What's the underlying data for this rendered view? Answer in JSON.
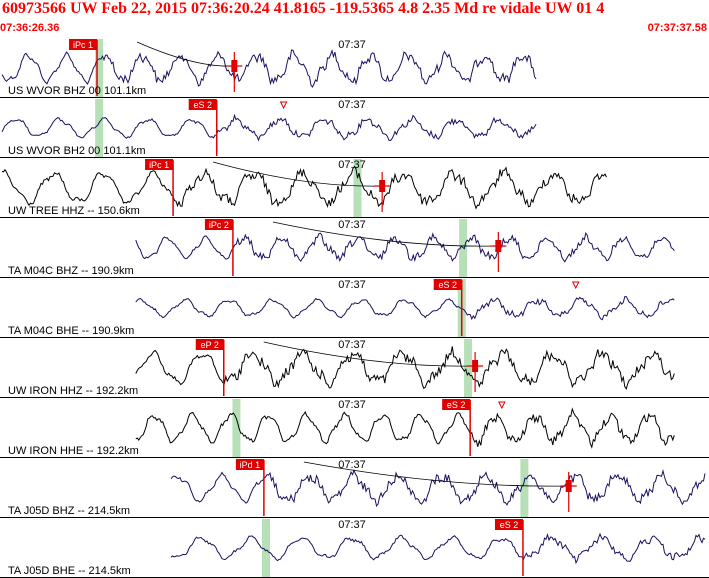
{
  "header": {
    "title": "60973566 UW Feb 22, 2015 07:36:20.24   41.8165 -119.5365  4.8 2.35 Md re vidale UW 01   4",
    "time_start": "07:36:26.36",
    "time_end": "07:37:37.58",
    "minute_label": "07:37"
  },
  "colors": {
    "title": "#ff0000",
    "trace_blue": "#1a1060",
    "trace_black": "#000000",
    "pick_flag": "#e00000",
    "window_band": "#b8e0b8",
    "travel_curve": "#000000"
  },
  "traces": [
    {
      "label": "US WVOR BHZ 00 101.1km",
      "color": "blue",
      "pick": "iPc 1",
      "pick_t": 0.135,
      "band_t": 0.138,
      "mark_t": 0.33,
      "mark_kind": "cross",
      "tri_t": 0.0,
      "start_t": 0.0,
      "end_t": 0.76,
      "amp": 0.9
    },
    {
      "label": "US WVOR BH2 00 101.1km",
      "color": "blue",
      "pick": "eS 2",
      "pick_t": 0.305,
      "band_t": 0.138,
      "mark_t": 0.305,
      "mark_kind": "none",
      "tri_t": 0.4,
      "start_t": 0.0,
      "end_t": 0.76,
      "amp": 0.6
    },
    {
      "label": "UW TREE HHZ -- 150.6km",
      "color": "black",
      "pick": "iPc 1",
      "pick_t": 0.243,
      "band_t": 0.505,
      "mark_t": 0.54,
      "mark_kind": "cross",
      "tri_t": 0.0,
      "start_t": 0.0,
      "end_t": 0.86,
      "amp": 1.0
    },
    {
      "label": "TA M04C BHZ -- 190.9km",
      "color": "blue",
      "pick": "iPc 2",
      "pick_t": 0.328,
      "band_t": 0.655,
      "mark_t": 0.705,
      "mark_kind": "cross",
      "tri_t": 0.0,
      "start_t": 0.19,
      "end_t": 0.955,
      "amp": 0.7
    },
    {
      "label": "TA M04C BHE -- 190.9km",
      "color": "blue",
      "pick": "eS 2",
      "pick_t": 0.653,
      "band_t": 0.653,
      "mark_t": 0.653,
      "mark_kind": "none",
      "tri_t": 0.815,
      "start_t": 0.19,
      "end_t": 0.955,
      "amp": 0.55
    },
    {
      "label": "UW IRON HHZ -- 192.2km",
      "color": "black",
      "pick": "eP 2",
      "pick_t": 0.315,
      "band_t": 0.662,
      "mark_t": 0.672,
      "mark_kind": "cross",
      "tri_t": 0.0,
      "start_t": 0.19,
      "end_t": 0.955,
      "amp": 1.0
    },
    {
      "label": "UW IRON HHE -- 192.2km",
      "color": "black",
      "pick": "eS 2",
      "pick_t": 0.665,
      "band_t": 0.333,
      "mark_t": 0.665,
      "mark_kind": "none",
      "tri_t": 0.71,
      "start_t": 0.19,
      "end_t": 0.955,
      "amp": 0.9
    },
    {
      "label": "TA J05D BHZ -- 214.5km",
      "color": "blue",
      "pick": "iPd 1",
      "pick_t": 0.372,
      "band_t": 0.742,
      "mark_t": 0.805,
      "mark_kind": "cross",
      "tri_t": 0.0,
      "start_t": 0.24,
      "end_t": 1.0,
      "amp": 0.85
    },
    {
      "label": "TA J05D BHE -- 214.5km",
      "color": "blue",
      "pick": "eS 2",
      "pick_t": 0.74,
      "band_t": 0.375,
      "mark_t": 0.74,
      "mark_kind": "none",
      "tri_t": 0.0,
      "start_t": 0.24,
      "end_t": 1.0,
      "amp": 0.7
    }
  ]
}
